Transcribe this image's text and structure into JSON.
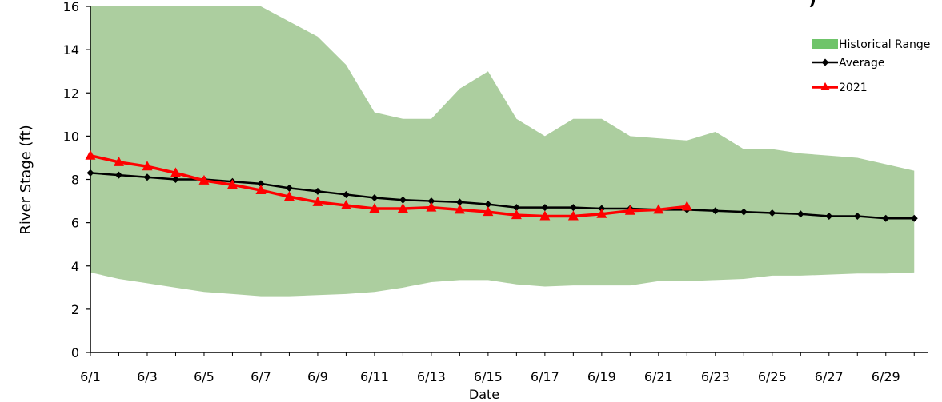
{
  "chart_data": {
    "type": "area",
    "title": ")",
    "xlabel": "Date",
    "ylabel": "River Stage (ft)",
    "ylim": [
      0,
      16
    ],
    "y_ticks": [
      0,
      2,
      4,
      6,
      8,
      10,
      12,
      14,
      16
    ],
    "x_tick_labels": [
      "6/1",
      "6/3",
      "6/5",
      "6/7",
      "6/9",
      "6/11",
      "6/13",
      "6/15",
      "6/17",
      "6/19",
      "6/21",
      "6/23",
      "6/25",
      "6/27",
      "6/29"
    ],
    "x_dates": [
      "6/1",
      "6/2",
      "6/3",
      "6/4",
      "6/5",
      "6/6",
      "6/7",
      "6/8",
      "6/9",
      "6/10",
      "6/11",
      "6/12",
      "6/13",
      "6/14",
      "6/15",
      "6/16",
      "6/17",
      "6/18",
      "6/19",
      "6/20",
      "6/21",
      "6/22",
      "6/23",
      "6/24",
      "6/25",
      "6/26",
      "6/27",
      "6/28",
      "6/29",
      "6/30"
    ],
    "grid": false,
    "legend_position": "top-right",
    "series": [
      {
        "name": "Historical Range",
        "kind": "range",
        "color": "#acce9f",
        "legend_color": "#6fc46a",
        "upper": [
          16.0,
          16.0,
          16.0,
          16.0,
          16.0,
          16.0,
          16.0,
          15.3,
          14.6,
          13.3,
          11.1,
          10.8,
          10.8,
          12.2,
          13.0,
          10.8,
          10.0,
          10.8,
          10.8,
          10.0,
          9.9,
          9.8,
          10.2,
          9.4,
          9.4,
          9.2,
          9.1,
          9.0,
          8.7,
          8.4
        ],
        "lower": [
          3.7,
          3.4,
          3.2,
          3.0,
          2.8,
          2.7,
          2.6,
          2.6,
          2.65,
          2.7,
          2.8,
          3.0,
          3.25,
          3.35,
          3.35,
          3.15,
          3.05,
          3.1,
          3.1,
          3.1,
          3.3,
          3.3,
          3.35,
          3.4,
          3.55,
          3.55,
          3.6,
          3.65,
          3.65,
          3.7
        ]
      },
      {
        "name": "Average",
        "kind": "line",
        "color": "#000000",
        "marker": "diamond",
        "values": [
          8.3,
          8.2,
          8.1,
          8.0,
          8.0,
          7.9,
          7.8,
          7.6,
          7.45,
          7.3,
          7.15,
          7.05,
          7.0,
          6.95,
          6.85,
          6.7,
          6.7,
          6.7,
          6.65,
          6.65,
          6.6,
          6.6,
          6.55,
          6.5,
          6.45,
          6.4,
          6.3,
          6.3,
          6.2,
          6.2
        ]
      },
      {
        "name": "2021",
        "kind": "line",
        "color": "#ff0000",
        "marker": "triangle",
        "values": [
          9.1,
          8.8,
          8.6,
          8.3,
          7.95,
          7.75,
          7.5,
          7.2,
          6.95,
          6.8,
          6.65,
          6.65,
          6.7,
          6.6,
          6.5,
          6.35,
          6.3,
          6.3,
          6.4,
          6.55,
          6.6,
          6.75
        ]
      }
    ]
  }
}
